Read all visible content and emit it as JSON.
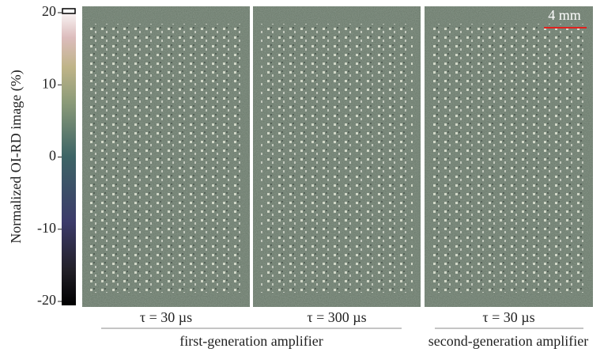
{
  "colorbar": {
    "label": "Normalized OI-RD image (%)",
    "lim": [
      -20,
      20
    ],
    "ticks": [
      20,
      10,
      0,
      -10,
      -20
    ]
  },
  "panels": [
    {
      "label": "τ = 30 µs"
    },
    {
      "label": "τ = 300 µs"
    },
    {
      "label": "τ = 30 µs"
    }
  ],
  "groups": [
    {
      "label": "first-generation amplifier"
    },
    {
      "label": "second-generation amplifier"
    }
  ],
  "scale_bar": {
    "label": "4 mm"
  }
}
